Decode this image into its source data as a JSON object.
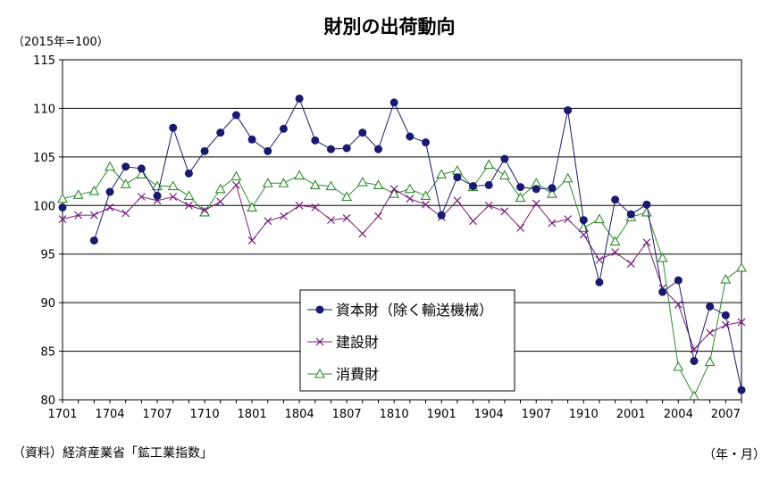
{
  "chart_data": {
    "type": "line",
    "title": "財別の出荷動向",
    "unit_note": "（2015年=100）",
    "xunit": "（年・月）",
    "source": "（資料）経済産業省「鉱工業指数」",
    "ylim": [
      80,
      115
    ],
    "yticks": [
      80,
      85,
      90,
      95,
      100,
      105,
      110,
      115
    ],
    "grid": "horizontal",
    "legend_position": "bottom-center",
    "x": [
      "1701",
      "1702",
      "1703",
      "1704",
      "1705",
      "1706",
      "1707",
      "1708",
      "1709",
      "1710",
      "1711",
      "1712",
      "1801",
      "1802",
      "1803",
      "1804",
      "1805",
      "1806",
      "1807",
      "1808",
      "1809",
      "1810",
      "1811",
      "1812",
      "1901",
      "1902",
      "1903",
      "1904",
      "1905",
      "1906",
      "1907",
      "1908",
      "1909",
      "1910",
      "1911",
      "1912",
      "2001",
      "2002",
      "2003",
      "2004",
      "2005",
      "2006",
      "2007",
      "2008"
    ],
    "xticks": [
      "1701",
      "1704",
      "1707",
      "1710",
      "1801",
      "1804",
      "1807",
      "1810",
      "1901",
      "1904",
      "1907",
      "1910",
      "2001",
      "2004",
      "2007"
    ],
    "series": [
      {
        "name": "資本財（除く輸送機械）",
        "color": "#1a1a6e",
        "marker": "circle",
        "values": [
          99.8,
          null,
          96.4,
          101.4,
          104.0,
          103.8,
          101.0,
          108.0,
          103.3,
          105.6,
          107.5,
          109.3,
          106.8,
          105.6,
          107.9,
          111.0,
          106.7,
          105.8,
          105.9,
          107.5,
          105.8,
          110.6,
          107.1,
          106.5,
          99.0,
          102.9,
          102.0,
          102.1,
          104.8,
          101.9,
          101.7,
          101.8,
          109.8,
          98.5,
          92.1,
          100.6,
          99.1,
          100.1,
          91.1,
          92.3,
          84.0,
          89.6,
          88.7,
          81.0
        ]
      },
      {
        "name": "建設財",
        "color": "#7a1f7a",
        "marker": "x",
        "values": [
          98.6,
          99.0,
          99.0,
          99.8,
          99.2,
          100.9,
          100.5,
          100.9,
          100.0,
          99.5,
          100.4,
          102.1,
          96.4,
          98.4,
          98.9,
          100.0,
          99.8,
          98.5,
          98.7,
          97.1,
          98.9,
          101.7,
          100.7,
          100.1,
          98.8,
          100.5,
          98.4,
          100.0,
          99.4,
          97.7,
          100.2,
          98.2,
          98.6,
          97.0,
          94.4,
          95.2,
          94.0,
          96.2,
          91.5,
          89.8,
          85.2,
          86.9,
          87.7,
          88.0
        ]
      },
      {
        "name": "消費財",
        "color": "#2e8b2e",
        "marker": "triangle",
        "values": [
          100.7,
          101.1,
          101.5,
          104.0,
          102.2,
          103.2,
          102.0,
          102.0,
          101.0,
          99.3,
          101.7,
          103.0,
          99.8,
          102.3,
          102.3,
          103.1,
          102.1,
          102.0,
          100.9,
          102.4,
          102.1,
          101.2,
          101.7,
          101.0,
          103.2,
          103.6,
          101.9,
          104.2,
          103.1,
          100.8,
          102.3,
          101.2,
          102.8,
          97.7,
          98.6,
          96.3,
          98.8,
          99.3,
          94.6,
          83.4,
          80.4,
          83.9,
          92.4,
          93.6
        ]
      }
    ]
  }
}
